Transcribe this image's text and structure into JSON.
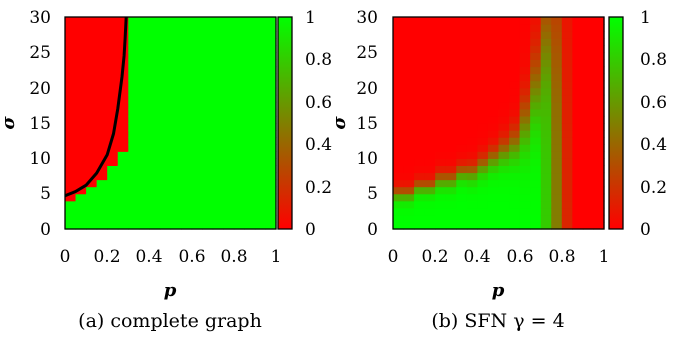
{
  "chart_data": [
    {
      "type": "heatmap",
      "caption": "(a) complete graph",
      "xlabel": "p",
      "ylabel": "σ",
      "xlim": [
        0,
        1
      ],
      "ylim": [
        0,
        30
      ],
      "x_ticks": [
        "0",
        "0.2",
        "0.4",
        "0.6",
        "0.8",
        "1"
      ],
      "y_ticks": [
        "0",
        "5",
        "10",
        "15",
        "20",
        "25",
        "30"
      ],
      "colorbar_ticks": [
        "0",
        "0.2",
        "0.4",
        "0.6",
        "0.8",
        "1"
      ],
      "colorbar_range": [
        0,
        1
      ],
      "colors": {
        "low": "#ff0000",
        "high": "#00ff00",
        "curve": "#000000"
      },
      "grid": false,
      "cells": {
        "nx": 20,
        "ny": 30,
        "dx": 0.05,
        "dy": 1
      },
      "red_region_description_boundary_sigma_upper_by_column": [
        4,
        5,
        6,
        7,
        9,
        11,
        30
      ],
      "boundary_curve": {
        "p": [
          0,
          0.05,
          0.1,
          0.15,
          0.2,
          0.23,
          0.25,
          0.27,
          0.28,
          0.285,
          0.29
        ],
        "sigma": [
          4.7,
          5.3,
          6.2,
          7.9,
          10.5,
          13.5,
          17,
          21.5,
          24.5,
          27,
          30
        ]
      }
    },
    {
      "type": "heatmap",
      "caption": "(b) SFN γ = 4",
      "xlabel": "p",
      "ylabel": "σ",
      "xlim": [
        0,
        1
      ],
      "ylim": [
        0,
        30
      ],
      "x_ticks": [
        "0",
        "0.2",
        "0.4",
        "0.6",
        "0.8",
        "1"
      ],
      "y_ticks": [
        "0",
        "5",
        "10",
        "15",
        "20",
        "25",
        "30"
      ],
      "colorbar_ticks": [
        "0",
        "0.2",
        "0.4",
        "0.6",
        "0.8",
        "1"
      ],
      "colorbar_range": [
        0,
        1
      ],
      "colors": {
        "low": "#ff0000",
        "high": "#00ff00"
      },
      "grid": false,
      "cells": {
        "nx": 20,
        "ny": 30,
        "dx": 0.05,
        "dy": 1
      },
      "transition_sigma_by_column": [
        5,
        5,
        6,
        6,
        7,
        7,
        8,
        8,
        9,
        10,
        11,
        12,
        15,
        20,
        28,
        31,
        31,
        31,
        31,
        31
      ],
      "transition_width_by_column": [
        0.6,
        0.6,
        0.6,
        0.6,
        0.7,
        0.7,
        0.7,
        0.8,
        0.9,
        1.0,
        1.2,
        1.5,
        2.5,
        3.5,
        5,
        8,
        9,
        10,
        10,
        10
      ],
      "column_max_value": [
        1,
        1,
        1,
        1,
        1,
        1,
        1,
        1,
        1,
        1,
        1,
        1,
        1,
        1,
        0.8,
        0.5,
        0.15,
        0,
        0,
        0
      ]
    }
  ]
}
